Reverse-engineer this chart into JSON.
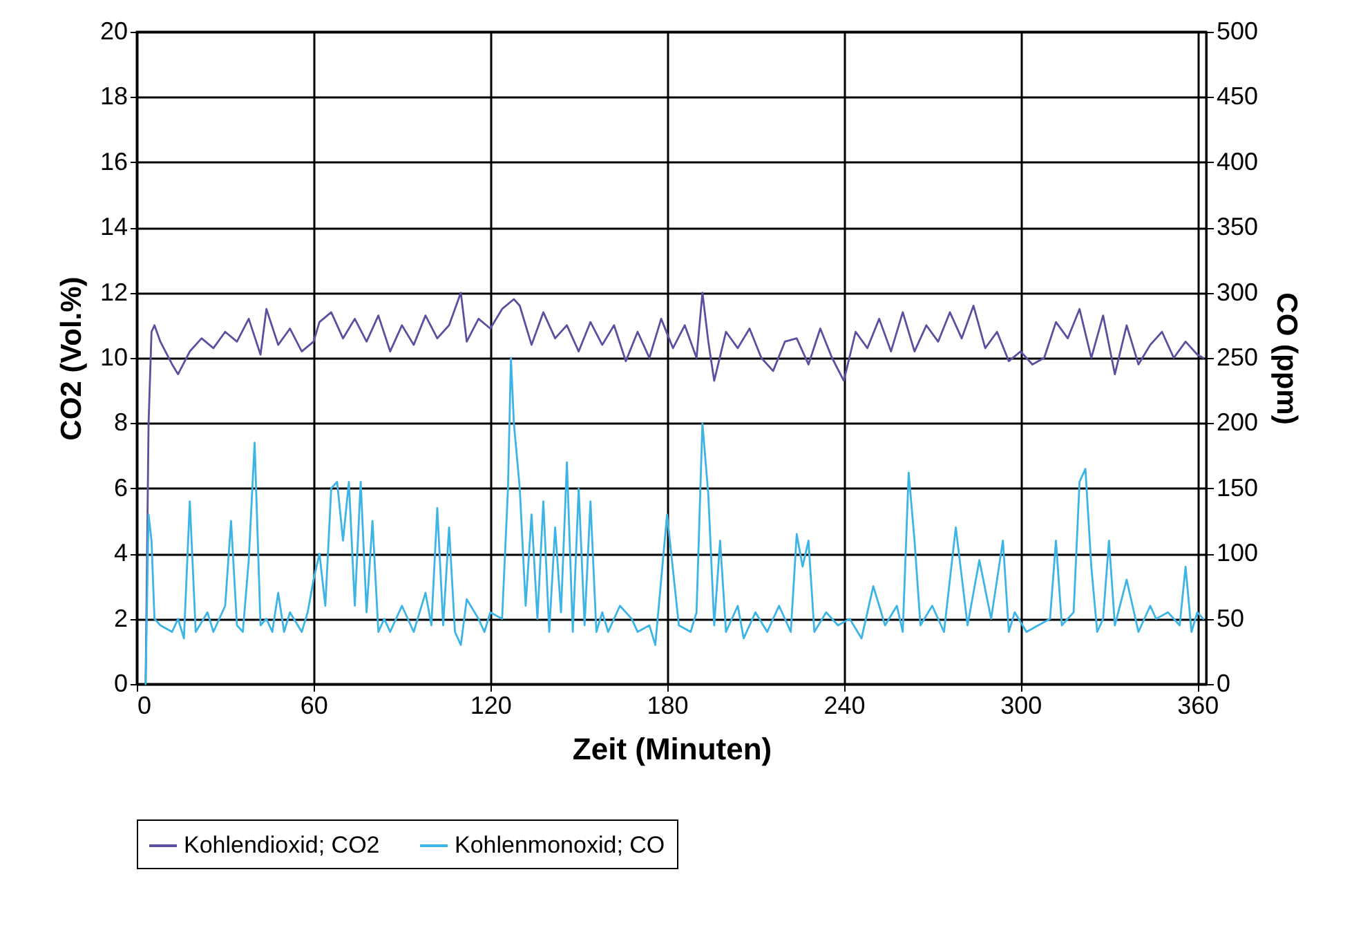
{
  "chart_data": {
    "type": "line",
    "xlabel": "Zeit (Minuten)",
    "ylabel": "CO2 (Vol.%)",
    "y2label": "CO (ppm)",
    "xlim": [
      0,
      363
    ],
    "xticks": [
      0,
      60,
      120,
      180,
      240,
      300,
      360
    ],
    "ylim": [
      0,
      20
    ],
    "yticks": [
      0,
      2,
      4,
      6,
      8,
      10,
      12,
      14,
      16,
      18,
      20
    ],
    "y2lim": [
      0,
      500
    ],
    "y2ticks": [
      0,
      50,
      100,
      150,
      200,
      250,
      300,
      350,
      400,
      450,
      500
    ],
    "grid": true,
    "legend": "bottom",
    "series": [
      {
        "name": "Kohlendioxid; CO2",
        "color": "#5b4fa0",
        "x": [
          3,
          4,
          5,
          6,
          8,
          12,
          14,
          18,
          22,
          26,
          30,
          34,
          38,
          42,
          44,
          48,
          52,
          56,
          60,
          62,
          66,
          70,
          74,
          78,
          82,
          86,
          90,
          94,
          98,
          102,
          106,
          110,
          112,
          116,
          120,
          124,
          128,
          130,
          134,
          138,
          142,
          146,
          150,
          154,
          158,
          162,
          166,
          170,
          174,
          178,
          182,
          186,
          190,
          192,
          194,
          196,
          200,
          204,
          208,
          212,
          216,
          220,
          224,
          228,
          232,
          236,
          240,
          244,
          248,
          252,
          256,
          260,
          264,
          268,
          272,
          276,
          280,
          284,
          288,
          292,
          296,
          300,
          304,
          308,
          312,
          316,
          320,
          324,
          328,
          332,
          336,
          340,
          344,
          348,
          352,
          356,
          360,
          362
        ],
        "values": [
          0,
          8,
          10.8,
          11.0,
          10.5,
          9.8,
          9.5,
          10.2,
          10.6,
          10.3,
          10.8,
          10.5,
          11.2,
          10.1,
          11.5,
          10.4,
          10.9,
          10.2,
          10.5,
          11.1,
          11.4,
          10.6,
          11.2,
          10.5,
          11.3,
          10.2,
          11.0,
          10.4,
          11.3,
          10.6,
          11.0,
          12.0,
          10.5,
          11.2,
          10.9,
          11.5,
          11.8,
          11.6,
          10.4,
          11.4,
          10.6,
          11.0,
          10.2,
          11.1,
          10.4,
          11.0,
          9.9,
          10.8,
          10.0,
          11.2,
          10.3,
          11.0,
          10.0,
          12.0,
          10.5,
          9.3,
          10.8,
          10.3,
          10.9,
          10.0,
          9.6,
          10.5,
          10.6,
          9.8,
          10.9,
          10.0,
          9.3,
          10.8,
          10.3,
          11.2,
          10.2,
          11.4,
          10.2,
          11.0,
          10.5,
          11.4,
          10.6,
          11.6,
          10.3,
          10.8,
          9.9,
          10.2,
          9.8,
          10.0,
          11.1,
          10.6,
          11.5,
          10.0,
          11.3,
          9.5,
          11.0,
          9.8,
          10.4,
          10.8,
          10.0,
          10.5,
          10.1,
          10.0
        ]
      },
      {
        "name": "Kohlenmonoxid; CO",
        "color": "#3cb4e6",
        "axis": "y2",
        "x": [
          3,
          4,
          5,
          6,
          8,
          12,
          14,
          16,
          18,
          20,
          24,
          26,
          30,
          32,
          34,
          36,
          38,
          40,
          42,
          44,
          46,
          48,
          50,
          52,
          56,
          58,
          60,
          62,
          64,
          66,
          68,
          70,
          72,
          74,
          76,
          78,
          80,
          82,
          84,
          86,
          90,
          94,
          98,
          100,
          102,
          104,
          106,
          108,
          110,
          112,
          116,
          118,
          120,
          124,
          126,
          127,
          128,
          130,
          132,
          134,
          136,
          138,
          140,
          142,
          144,
          146,
          148,
          150,
          152,
          154,
          156,
          158,
          160,
          164,
          168,
          170,
          174,
          176,
          180,
          184,
          188,
          190,
          192,
          194,
          196,
          198,
          200,
          204,
          206,
          210,
          214,
          218,
          222,
          224,
          226,
          228,
          230,
          234,
          238,
          242,
          246,
          250,
          254,
          258,
          260,
          262,
          264,
          266,
          270,
          274,
          278,
          282,
          286,
          290,
          294,
          296,
          298,
          302,
          306,
          310,
          312,
          314,
          318,
          320,
          322,
          324,
          326,
          328,
          330,
          332,
          336,
          340,
          344,
          346,
          350,
          354,
          356,
          358,
          360,
          362
        ],
        "values": [
          0,
          130,
          110,
          50,
          45,
          40,
          50,
          35,
          140,
          40,
          55,
          40,
          60,
          125,
          45,
          40,
          95,
          185,
          45,
          50,
          40,
          70,
          40,
          55,
          40,
          55,
          80,
          100,
          60,
          150,
          155,
          110,
          155,
          60,
          155,
          55,
          125,
          40,
          50,
          40,
          60,
          40,
          70,
          45,
          135,
          45,
          120,
          40,
          30,
          65,
          50,
          40,
          55,
          50,
          150,
          250,
          200,
          150,
          60,
          130,
          50,
          140,
          40,
          120,
          55,
          170,
          40,
          150,
          45,
          140,
          40,
          55,
          40,
          60,
          50,
          40,
          45,
          30,
          130,
          45,
          40,
          55,
          200,
          145,
          45,
          110,
          40,
          60,
          35,
          55,
          40,
          60,
          40,
          115,
          90,
          110,
          40,
          55,
          45,
          50,
          35,
          75,
          45,
          60,
          40,
          162,
          110,
          45,
          60,
          40,
          120,
          45,
          95,
          50,
          110,
          40,
          55,
          40,
          45,
          50,
          110,
          45,
          55,
          155,
          165,
          90,
          40,
          50,
          110,
          45,
          80,
          40,
          60,
          50,
          55,
          45,
          90,
          40,
          55,
          50
        ]
      }
    ]
  }
}
